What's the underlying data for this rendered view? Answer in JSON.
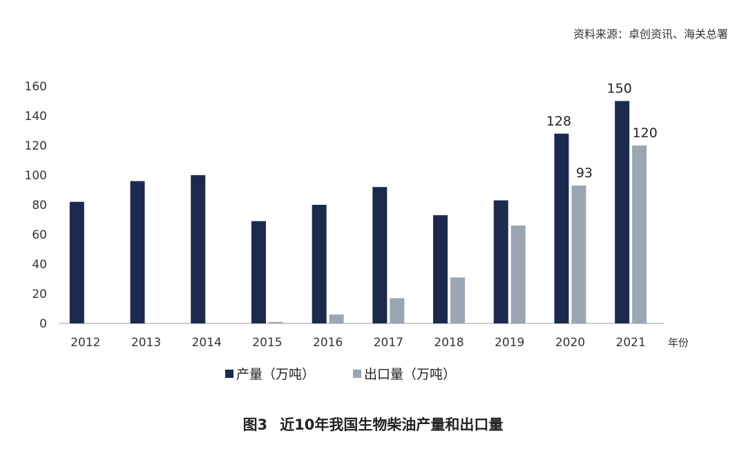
{
  "source": "资料来源：卓创资讯、海关总署",
  "caption": {
    "number": "图3",
    "title": "近10年我国生物柴油产量和出口量"
  },
  "colors": {
    "production": "#1b2a4e",
    "export": "#9aa6b4",
    "axis": "#bfbfbf"
  },
  "chart_data": {
    "type": "bar",
    "categories": [
      "2012",
      "2013",
      "2014",
      "2015",
      "2016",
      "2017",
      "2018",
      "2019",
      "2020",
      "2021"
    ],
    "x_unit": "年份",
    "ylim": [
      0,
      160
    ],
    "yticks": [
      0,
      20,
      40,
      60,
      80,
      100,
      120,
      140,
      160
    ],
    "grid": false,
    "legend_position": "bottom",
    "series": [
      {
        "name": "产量（万吨）",
        "values": [
          82,
          96,
          100,
          69,
          80,
          92,
          73,
          83,
          128,
          150
        ],
        "labeled": [
          false,
          false,
          false,
          false,
          false,
          false,
          false,
          false,
          true,
          true
        ]
      },
      {
        "name": "出口量（万吨）",
        "values": [
          0,
          0,
          0,
          1,
          6,
          17,
          31,
          66,
          93,
          120
        ],
        "labeled": [
          false,
          false,
          false,
          false,
          false,
          false,
          false,
          false,
          true,
          true
        ]
      }
    ]
  }
}
